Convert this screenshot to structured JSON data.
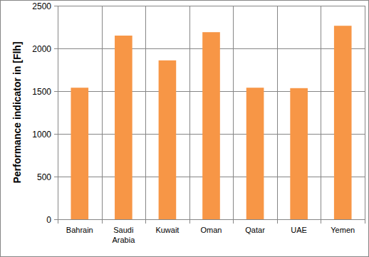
{
  "chart_data": {
    "type": "bar",
    "y_label": "Performance indicator in [Flh]",
    "categories": [
      "Bahrain",
      "Saudi Arabia",
      "Kuwait",
      "Oman",
      "Qatar",
      "UAE",
      "Yemen"
    ],
    "values": [
      1540,
      2150,
      1860,
      2190,
      1540,
      1535,
      2265
    ],
    "color": "#f79646",
    "ylim": [
      0,
      2500
    ],
    "yticks": [
      0,
      500,
      1000,
      1500,
      2000,
      2500
    ],
    "grid": true
  }
}
